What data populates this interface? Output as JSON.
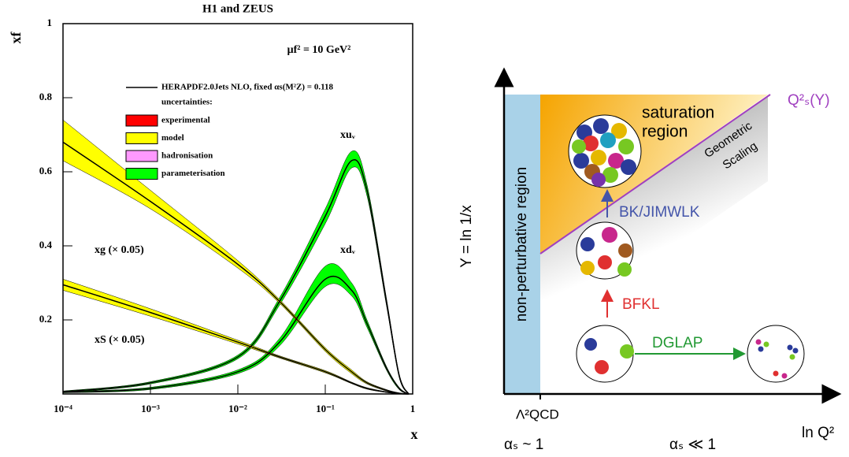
{
  "chart_data": {
    "type": "line",
    "title": "H1 and ZEUS",
    "x_label": "x",
    "y_label": "xf",
    "annotation": "μf² = 10 GeV²",
    "legend_header": "HERAPDF2.0Jets NLO, fixed  αs(M²Z) = 0.118",
    "legend_subheader": "uncertainties:",
    "uncertainties": [
      {
        "name": "experimental",
        "color": "#ff0000"
      },
      {
        "name": "model",
        "color": "#ffff00"
      },
      {
        "name": "hadronisation",
        "color": "#ff99ff"
      },
      {
        "name": "parameterisation",
        "color": "#00ff00"
      }
    ],
    "x_scale": "log",
    "xlim": [
      0.0001,
      1
    ],
    "ylim": [
      0,
      1
    ],
    "xticks": [
      {
        "value": 0.0001,
        "label": "10⁻⁴"
      },
      {
        "value": 0.001,
        "label": "10⁻³"
      },
      {
        "value": 0.01,
        "label": "10⁻²"
      },
      {
        "value": 0.1,
        "label": "10⁻¹"
      },
      1
    ],
    "yticks": [
      0.2,
      0.4,
      0.6,
      0.8,
      1
    ],
    "x": [
      0.0001,
      0.001,
      0.01,
      0.03,
      0.1,
      0.2,
      0.3,
      0.5,
      0.7,
      0.9
    ],
    "series": [
      {
        "name": "xuᵥ",
        "color": "#000000",
        "band_color": "#00ff00",
        "values": [
          0.006,
          0.03,
          0.1,
          0.25,
          0.48,
          0.63,
          0.55,
          0.25,
          0.05,
          0
        ],
        "lower": [
          0.004,
          0.027,
          0.095,
          0.24,
          0.46,
          0.61,
          0.535,
          0.24,
          0.045,
          0
        ],
        "upper": [
          0.008,
          0.033,
          0.105,
          0.26,
          0.5,
          0.655,
          0.565,
          0.26,
          0.055,
          0
        ]
      },
      {
        "name": "xdᵥ",
        "color": "#000000",
        "band_color": "#00ff00",
        "values": [
          0.005,
          0.015,
          0.06,
          0.14,
          0.31,
          0.28,
          0.19,
          0.07,
          0.015,
          0
        ],
        "lower": [
          0.003,
          0.012,
          0.055,
          0.13,
          0.29,
          0.265,
          0.18,
          0.065,
          0.012,
          0
        ],
        "upper": [
          0.007,
          0.018,
          0.065,
          0.15,
          0.345,
          0.3,
          0.2,
          0.075,
          0.018,
          0
        ]
      },
      {
        "name": "xg (× 0.05)",
        "color": "#000000",
        "band_color": "#ffff00",
        "values": [
          0.68,
          0.52,
          0.35,
          0.25,
          0.12,
          0.06,
          0.03,
          0.01,
          0.002,
          0
        ],
        "lower": [
          0.63,
          0.5,
          0.34,
          0.245,
          0.115,
          0.055,
          0.027,
          0.008,
          0.001,
          0
        ],
        "upper": [
          0.74,
          0.55,
          0.36,
          0.255,
          0.125,
          0.065,
          0.033,
          0.012,
          0.003,
          0
        ]
      },
      {
        "name": "xS (× 0.05)",
        "color": "#000000",
        "band_color": "#ffff00",
        "values": [
          0.295,
          0.22,
          0.14,
          0.1,
          0.06,
          0.03,
          0.015,
          0.005,
          0.001,
          0
        ],
        "lower": [
          0.28,
          0.21,
          0.135,
          0.097,
          0.057,
          0.028,
          0.013,
          0.004,
          0.0005,
          0
        ],
        "upper": [
          0.31,
          0.23,
          0.145,
          0.103,
          0.063,
          0.032,
          0.017,
          0.006,
          0.0015,
          0
        ]
      }
    ]
  },
  "diagram": {
    "y_axis_label": "Y = ln 1/x",
    "x_axis_label": "ln Q²",
    "lambda_label": "Λ²QCD",
    "alpha_left": "αₛ ~ 1",
    "alpha_right": "αₛ ≪ 1",
    "nonperturbative": "non-perturbative region",
    "saturation": [
      "saturation",
      "region"
    ],
    "scaling": [
      "Geometric",
      "Scaling"
    ],
    "curve_label": "Q²ₛ(Y)",
    "arrow_up_top": "BK/JIMWLK",
    "arrow_up_bottom": "BFKL",
    "arrow_right": "DGLAP"
  }
}
